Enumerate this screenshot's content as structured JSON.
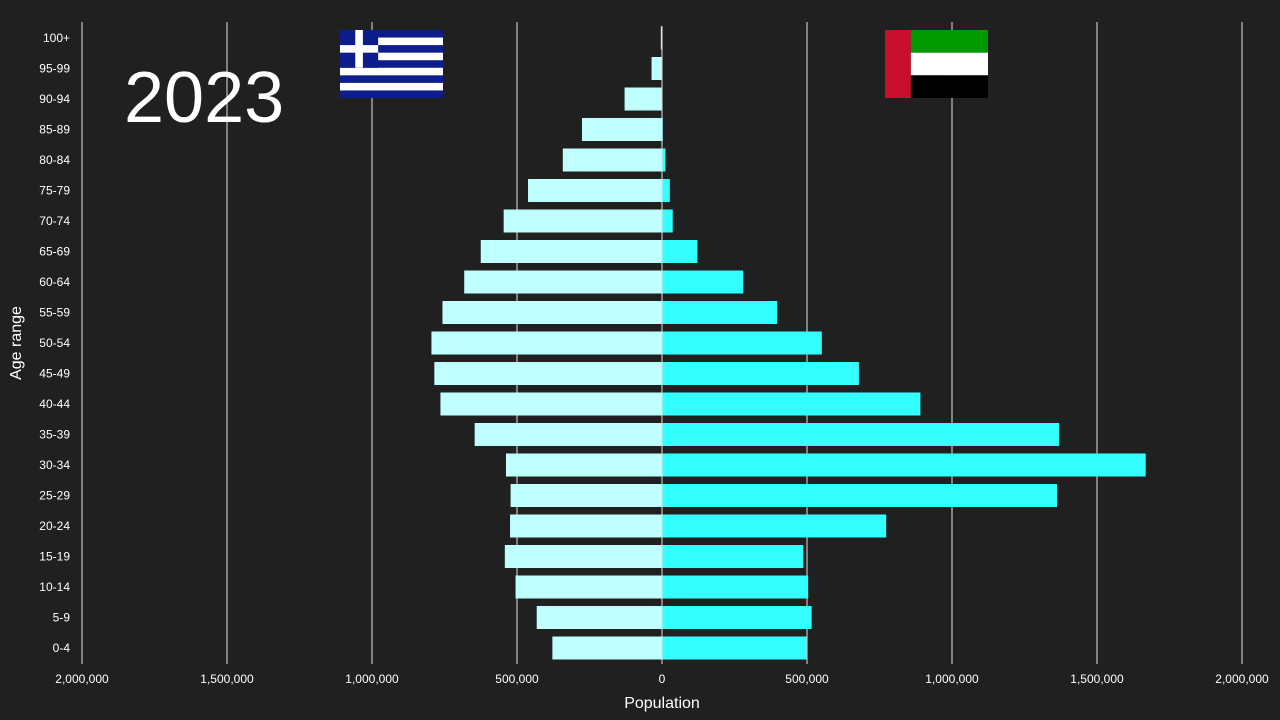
{
  "year": "2023",
  "flags": {
    "left": {
      "name": "greece-flag",
      "colors": {
        "blue": "#0d1e8c",
        "white": "#ffffff"
      }
    },
    "right": {
      "name": "uae-flag",
      "colors": {
        "red": "#c8102e",
        "green": "#009a00",
        "white": "#ffffff",
        "black": "#000000"
      }
    }
  },
  "colors": {
    "background": "#202020",
    "left_bar": "#c0ffff",
    "right_bar": "#33ffff",
    "grid": "#e0e0e0",
    "text": "#ffffff"
  },
  "chart_data": {
    "type": "bar",
    "orientation": "horizontal-butterfly",
    "title": "2023",
    "xlabel": "Population",
    "ylabel": "Age range",
    "xlim": [
      -2000000,
      2000000
    ],
    "x_ticks": [
      -2000000,
      -1500000,
      -1000000,
      -500000,
      0,
      500000,
      1000000,
      1500000,
      2000000
    ],
    "x_tick_labels": [
      "2,000,000",
      "1,500,000",
      "1,000,000",
      "500,000",
      "0",
      "500,000",
      "1,000,000",
      "1,500,000",
      "2,000,000"
    ],
    "grid": true,
    "categories": [
      "0-4",
      "5-9",
      "10-14",
      "15-19",
      "20-24",
      "25-29",
      "30-34",
      "35-39",
      "40-44",
      "45-49",
      "50-54",
      "55-59",
      "60-64",
      "65-69",
      "70-74",
      "75-79",
      "80-84",
      "85-89",
      "90-94",
      "95-99",
      "100+"
    ],
    "series": [
      {
        "side": "left",
        "values": [
          378000,
          432000,
          505000,
          542000,
          524000,
          522000,
          538000,
          646000,
          764000,
          785000,
          795000,
          757000,
          682000,
          625000,
          546000,
          462000,
          342000,
          276000,
          129000,
          36000,
          4000
        ]
      },
      {
        "side": "right",
        "values": [
          498000,
          516000,
          504000,
          487000,
          773000,
          1362000,
          1668000,
          1369000,
          891000,
          679000,
          551000,
          397000,
          280000,
          122000,
          37000,
          27000,
          12000,
          3000,
          1000,
          0,
          0
        ]
      }
    ]
  }
}
